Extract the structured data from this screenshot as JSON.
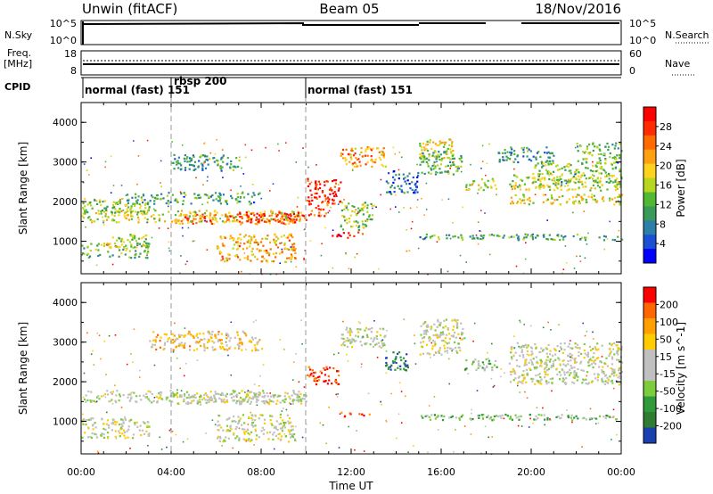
{
  "header": {
    "title": "Unwin (fitACF)",
    "beam": "Beam 05",
    "date": "18/Nov/2016"
  },
  "nsky_panel": {
    "left_label": "N.Sky",
    "right_label": "N.Search",
    "ticks_left": [
      "10^5",
      "10^0"
    ],
    "ticks_right": [
      "10^5",
      "10^0"
    ]
  },
  "freq_panel": {
    "left_label_line1": "Freq.",
    "left_label_line2": "[MHz]",
    "right_label": "Nave",
    "ticks_left": [
      "18",
      "8"
    ],
    "ticks_right": [
      "60",
      "0"
    ]
  },
  "cpid_panel": {
    "label": "CPID",
    "segments": [
      {
        "start": 0,
        "label": "normal (fast) 151"
      },
      {
        "start": 4,
        "label": "rbsp 200"
      },
      {
        "start": 10,
        "label": "normal (fast) 151"
      }
    ]
  },
  "x_axis": {
    "label": "Time UT",
    "ticks": [
      "00:00",
      "04:00",
      "08:00",
      "12:00",
      "16:00",
      "20:00",
      "00:00"
    ]
  },
  "chart_data": [
    {
      "type": "heatmap",
      "name": "power",
      "ylabel": "Slant Range [km]",
      "ylim": [
        180,
        4500
      ],
      "yticks": [
        "1000",
        "2000",
        "3000",
        "4000"
      ],
      "xlim": [
        0,
        24
      ],
      "colorbar": {
        "label": "Power [dB]",
        "ticks": [
          "4",
          "8",
          "12",
          "16",
          "20",
          "24",
          "28"
        ],
        "colors": [
          "#0000ff",
          "#1a4fd6",
          "#2b7fa8",
          "#3a9a5a",
          "#52b832",
          "#b8d61e",
          "#ffd21e",
          "#ffa010",
          "#ff6a00",
          "#ff2a00",
          "#ff0000"
        ]
      },
      "regions": [
        {
          "t": [
            0,
            10
          ],
          "r": [
            1500,
            1800
          ],
          "level": 0.55
        },
        {
          "t": [
            4,
            10
          ],
          "r": [
            1450,
            1700
          ],
          "level": 0.75
        },
        {
          "t": [
            7,
            10
          ],
          "r": [
            1500,
            1750
          ],
          "level": 0.95
        },
        {
          "t": [
            0,
            3
          ],
          "r": [
            1700,
            2100
          ],
          "level": 0.45
        },
        {
          "t": [
            0,
            3
          ],
          "r": [
            600,
            1000
          ],
          "level": 0.4
        },
        {
          "t": [
            1,
            3
          ],
          "r": [
            850,
            1200
          ],
          "level": 0.5
        },
        {
          "t": [
            6,
            9.5
          ],
          "r": [
            500,
            1200
          ],
          "level": 0.65
        },
        {
          "t": [
            2,
            8
          ],
          "r": [
            1950,
            2250
          ],
          "level": 0.35
        },
        {
          "t": [
            4,
            7
          ],
          "r": [
            2800,
            3200
          ],
          "level": 0.3
        },
        {
          "t": [
            10,
            11.5
          ],
          "r": [
            1950,
            2600
          ],
          "level": 0.9
        },
        {
          "t": [
            10,
            11
          ],
          "r": [
            1650,
            1950
          ],
          "level": 0.85
        },
        {
          "t": [
            11,
            12.5
          ],
          "r": [
            1100,
            1250
          ],
          "level": 0.95
        },
        {
          "t": [
            11.5,
            13
          ],
          "r": [
            1300,
            2000
          ],
          "level": 0.45
        },
        {
          "t": [
            11.5,
            13.5
          ],
          "r": [
            2900,
            3400
          ],
          "level": 0.7
        },
        {
          "t": [
            13.5,
            15
          ],
          "r": [
            2200,
            2800
          ],
          "level": 0.2
        },
        {
          "t": [
            15,
            16.5
          ],
          "r": [
            3100,
            3600
          ],
          "level": 0.55
        },
        {
          "t": [
            15,
            17
          ],
          "r": [
            2700,
            3300
          ],
          "level": 0.4
        },
        {
          "t": [
            17,
            18.5
          ],
          "r": [
            2300,
            2600
          ],
          "level": 0.55
        },
        {
          "t": [
            15,
            24
          ],
          "r": [
            1050,
            1200
          ],
          "level": 0.35
        },
        {
          "t": [
            19,
            24
          ],
          "r": [
            2300,
            2700
          ],
          "level": 0.5
        },
        {
          "t": [
            19,
            24
          ],
          "r": [
            1950,
            2200
          ],
          "level": 0.55
        },
        {
          "t": [
            20,
            24
          ],
          "r": [
            2500,
            3000
          ],
          "level": 0.45
        },
        {
          "t": [
            22,
            24
          ],
          "r": [
            3000,
            3500
          ],
          "level": 0.4
        },
        {
          "t": [
            18.5,
            21
          ],
          "r": [
            3000,
            3400
          ],
          "level": 0.3
        }
      ]
    },
    {
      "type": "heatmap",
      "name": "velocity",
      "ylabel": "Slant Range [km]",
      "ylim": [
        180,
        4500
      ],
      "yticks": [
        "1000",
        "2000",
        "3000",
        "4000"
      ],
      "xlim": [
        0,
        24
      ],
      "colorbar": {
        "label": "Velocity [m s^-1]",
        "ticks": [
          "200",
          "100",
          "50",
          "15",
          "-15",
          "-50",
          "-100",
          "-200"
        ],
        "colors": [
          "#1a3fae",
          "#2e7d32",
          "#2e9a3a",
          "#7dcc3c",
          "#c0c0c0",
          "#c0c0c0",
          "#ffcc00",
          "#ffa000",
          "#ff6600",
          "#ff0000"
        ]
      },
      "regions": [
        {
          "t": [
            0,
            10
          ],
          "r": [
            1500,
            1800
          ],
          "level": 0.5
        },
        {
          "t": [
            4,
            10
          ],
          "r": [
            1450,
            1700
          ],
          "level": 0.5
        },
        {
          "t": [
            0,
            3
          ],
          "r": [
            600,
            1100
          ],
          "level": 0.5
        },
        {
          "t": [
            6,
            9.5
          ],
          "r": [
            500,
            1200
          ],
          "level": 0.5
        },
        {
          "t": [
            10,
            11.5
          ],
          "r": [
            1950,
            2400
          ],
          "level": 0.9
        },
        {
          "t": [
            11.5,
            12.8
          ],
          "r": [
            1100,
            1250
          ],
          "level": 0.88
        },
        {
          "t": [
            11.5,
            13.5
          ],
          "r": [
            2900,
            3400
          ],
          "level": 0.5
        },
        {
          "t": [
            13.5,
            14.5
          ],
          "r": [
            2300,
            2800
          ],
          "level": 0.1
        },
        {
          "t": [
            15,
            17
          ],
          "r": [
            2700,
            3600
          ],
          "level": 0.5
        },
        {
          "t": [
            17,
            18.5
          ],
          "r": [
            2300,
            2600
          ],
          "level": 0.35
        },
        {
          "t": [
            19,
            24
          ],
          "r": [
            1950,
            3000
          ],
          "level": 0.5
        },
        {
          "t": [
            15,
            24
          ],
          "r": [
            1050,
            1200
          ],
          "level": 0.35
        },
        {
          "t": [
            3,
            8
          ],
          "r": [
            2800,
            3300
          ],
          "level": 0.65
        }
      ]
    }
  ]
}
